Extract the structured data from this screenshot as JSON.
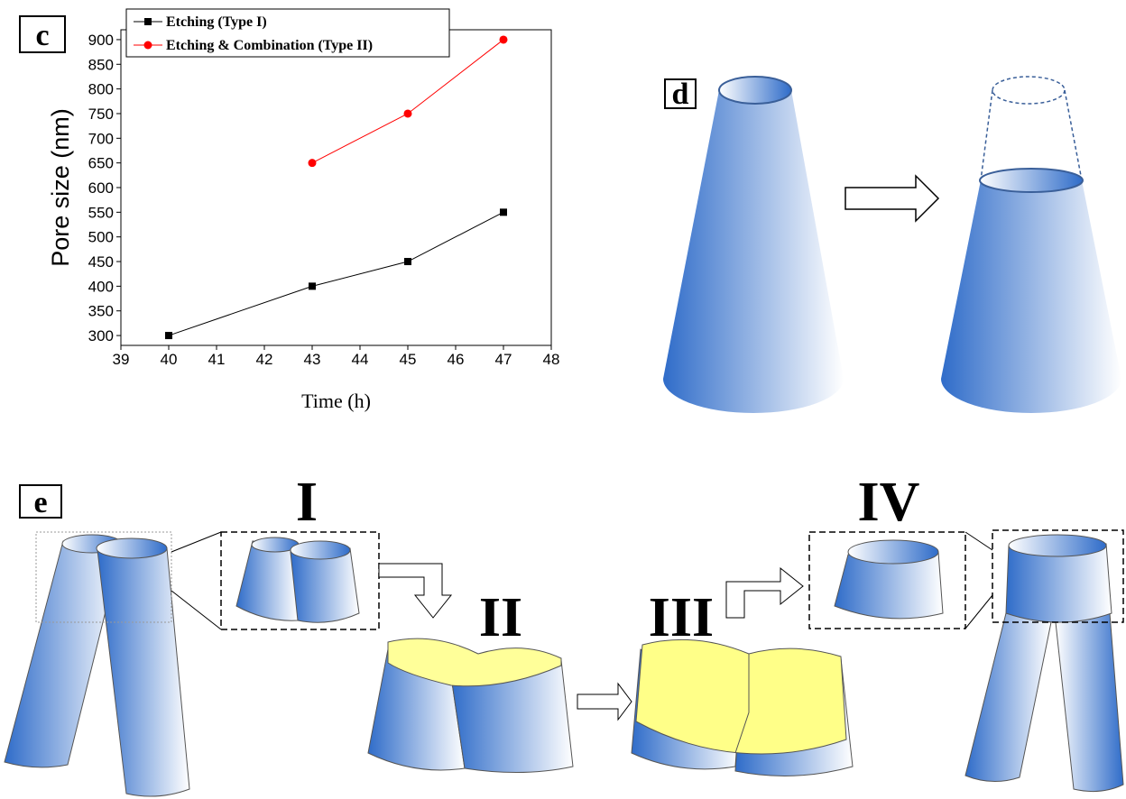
{
  "chart_data": {
    "type": "line",
    "x_label": "Time (h)",
    "y_label": "Pore size (nm)",
    "x": [
      40,
      43,
      45,
      47
    ],
    "series": [
      {
        "name": "Etching (Type I)",
        "color": "#000000",
        "marker": "square",
        "values": [
          300,
          400,
          450,
          550
        ]
      },
      {
        "name": "Etching & Combination (Type II)",
        "color": "#ff0000",
        "marker": "circle",
        "values": [
          null,
          650,
          750,
          900
        ]
      }
    ],
    "xlim": [
      39,
      48
    ],
    "xticks": [
      39,
      40,
      41,
      42,
      43,
      44,
      45,
      46,
      47,
      48
    ],
    "ylim": [
      280,
      920
    ],
    "yticks": [
      300,
      350,
      400,
      450,
      500,
      550,
      600,
      650,
      700,
      750,
      800,
      850,
      900
    ],
    "legend": "top-left",
    "grid": false
  },
  "panel_labels": [
    "c",
    "d",
    "e"
  ],
  "stage_labels": [
    "I",
    "II",
    "III",
    "IV"
  ]
}
